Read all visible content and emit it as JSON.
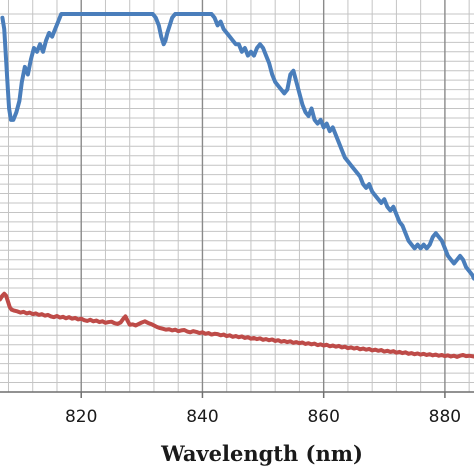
{
  "chart_data": {
    "type": "line",
    "xlabel": "Wavelength (nm)",
    "ylabel": "",
    "xlim": [
      806.6,
      884.8
    ],
    "ylim": [
      0,
      100
    ],
    "x_ticks": [
      820,
      840,
      860,
      880
    ],
    "x_tick_labels": [
      "820",
      "840",
      "860",
      "880"
    ],
    "x_grid_step": 4,
    "y_grid_step": 2.5,
    "grid": true,
    "legend": "none",
    "series": [
      {
        "color": "#4a7ebb",
        "points": [
          [
            807.0,
            99
          ],
          [
            807.3,
            96
          ],
          [
            807.6,
            88
          ],
          [
            807.9,
            80
          ],
          [
            808.1,
            75
          ],
          [
            808.4,
            72
          ],
          [
            808.8,
            72
          ],
          [
            809.3,
            74
          ],
          [
            809.8,
            77
          ],
          [
            810.2,
            82
          ],
          [
            810.7,
            86
          ],
          [
            811.2,
            84
          ],
          [
            811.7,
            88
          ],
          [
            812.2,
            91
          ],
          [
            812.7,
            90
          ],
          [
            813.2,
            92
          ],
          [
            813.7,
            90
          ],
          [
            814.2,
            93
          ],
          [
            814.7,
            95
          ],
          [
            815.2,
            94
          ],
          [
            815.7,
            96
          ],
          [
            816.2,
            98
          ],
          [
            816.7,
            100
          ],
          [
            817.2,
            100
          ],
          [
            817.7,
            100
          ],
          [
            818.2,
            100
          ],
          [
            818.7,
            100
          ],
          [
            819.2,
            100
          ],
          [
            819.7,
            100
          ],
          [
            820.2,
            100
          ],
          [
            821.0,
            100
          ],
          [
            822.0,
            100
          ],
          [
            823.0,
            100
          ],
          [
            824.0,
            100
          ],
          [
            825.0,
            100
          ],
          [
            826.0,
            100
          ],
          [
            827.0,
            100
          ],
          [
            828.0,
            100
          ],
          [
            829.0,
            100
          ],
          [
            830.0,
            100
          ],
          [
            831.0,
            100
          ],
          [
            831.8,
            100
          ],
          [
            832.3,
            99
          ],
          [
            832.8,
            97
          ],
          [
            833.2,
            94
          ],
          [
            833.6,
            92
          ],
          [
            833.9,
            93
          ],
          [
            834.2,
            95
          ],
          [
            834.6,
            97
          ],
          [
            835.0,
            99
          ],
          [
            835.5,
            100
          ],
          [
            836.5,
            100
          ],
          [
            837.5,
            100
          ],
          [
            838.5,
            100
          ],
          [
            839.5,
            100
          ],
          [
            840.5,
            100
          ],
          [
            841.5,
            100
          ],
          [
            842.0,
            99
          ],
          [
            842.5,
            97
          ],
          [
            843.0,
            98
          ],
          [
            843.5,
            96
          ],
          [
            844.0,
            95
          ],
          [
            844.5,
            94
          ],
          [
            845.0,
            93
          ],
          [
            845.5,
            92
          ],
          [
            846.0,
            92
          ],
          [
            846.5,
            90
          ],
          [
            847.0,
            91
          ],
          [
            847.5,
            89
          ],
          [
            848.0,
            90
          ],
          [
            848.5,
            89
          ],
          [
            849.0,
            91
          ],
          [
            849.5,
            92
          ],
          [
            850.0,
            91
          ],
          [
            850.5,
            89
          ],
          [
            851.0,
            87
          ],
          [
            851.5,
            84
          ],
          [
            852.0,
            82
          ],
          [
            852.5,
            81
          ],
          [
            853.0,
            80
          ],
          [
            853.5,
            79
          ],
          [
            854.0,
            80
          ],
          [
            854.5,
            84
          ],
          [
            855.0,
            85
          ],
          [
            855.5,
            82
          ],
          [
            856.0,
            79
          ],
          [
            856.5,
            76
          ],
          [
            857.0,
            74
          ],
          [
            857.5,
            73
          ],
          [
            858.0,
            75
          ],
          [
            858.5,
            72
          ],
          [
            859.0,
            71
          ],
          [
            859.5,
            72
          ],
          [
            860.0,
            70
          ],
          [
            860.5,
            71
          ],
          [
            861.0,
            69
          ],
          [
            861.5,
            70
          ],
          [
            862.0,
            68
          ],
          [
            862.5,
            66
          ],
          [
            863.0,
            64
          ],
          [
            863.5,
            62
          ],
          [
            864.0,
            61
          ],
          [
            864.5,
            60
          ],
          [
            865.0,
            59
          ],
          [
            865.5,
            58
          ],
          [
            866.0,
            57
          ],
          [
            866.5,
            55
          ],
          [
            867.0,
            54
          ],
          [
            867.5,
            55
          ],
          [
            868.0,
            53
          ],
          [
            868.5,
            52
          ],
          [
            869.0,
            51
          ],
          [
            869.5,
            50
          ],
          [
            870.0,
            51
          ],
          [
            870.5,
            49
          ],
          [
            871.0,
            48
          ],
          [
            871.5,
            49
          ],
          [
            872.0,
            47
          ],
          [
            872.5,
            45
          ],
          [
            873.0,
            44
          ],
          [
            873.5,
            42
          ],
          [
            874.0,
            40
          ],
          [
            874.5,
            39
          ],
          [
            875.0,
            38
          ],
          [
            875.5,
            39
          ],
          [
            876.0,
            38
          ],
          [
            876.5,
            39
          ],
          [
            877.0,
            38
          ],
          [
            877.5,
            39
          ],
          [
            878.0,
            41
          ],
          [
            878.5,
            42
          ],
          [
            879.0,
            41
          ],
          [
            879.5,
            40
          ],
          [
            880.0,
            38
          ],
          [
            880.5,
            36
          ],
          [
            881.0,
            35
          ],
          [
            881.5,
            34
          ],
          [
            882.0,
            35
          ],
          [
            882.5,
            36
          ],
          [
            883.0,
            35
          ],
          [
            883.5,
            33
          ],
          [
            884.0,
            32
          ],
          [
            884.5,
            31
          ],
          [
            884.8,
            30
          ]
        ]
      },
      {
        "color": "#be4b48",
        "points": [
          [
            806.6,
            24.5
          ],
          [
            807.0,
            25.5
          ],
          [
            807.3,
            26.0
          ],
          [
            807.6,
            25.5
          ],
          [
            807.9,
            24.0
          ],
          [
            808.2,
            22.5
          ],
          [
            808.5,
            21.8
          ],
          [
            809.0,
            21.5
          ],
          [
            809.5,
            21.3
          ],
          [
            810.0,
            21.0
          ],
          [
            810.5,
            21.2
          ],
          [
            811.0,
            20.8
          ],
          [
            811.5,
            21.0
          ],
          [
            812.0,
            20.6
          ],
          [
            812.5,
            20.8
          ],
          [
            813.0,
            20.4
          ],
          [
            813.5,
            20.6
          ],
          [
            814.0,
            20.2
          ],
          [
            814.5,
            20.4
          ],
          [
            815.0,
            20.0
          ],
          [
            815.5,
            19.8
          ],
          [
            816.0,
            20.1
          ],
          [
            816.5,
            19.7
          ],
          [
            817.0,
            19.9
          ],
          [
            817.5,
            19.5
          ],
          [
            818.0,
            19.8
          ],
          [
            818.5,
            19.4
          ],
          [
            819.0,
            19.6
          ],
          [
            819.5,
            19.2
          ],
          [
            820.0,
            19.4
          ],
          [
            820.5,
            19.0
          ],
          [
            821.0,
            18.8
          ],
          [
            821.5,
            19.1
          ],
          [
            822.0,
            18.7
          ],
          [
            822.5,
            18.9
          ],
          [
            823.0,
            18.5
          ],
          [
            823.5,
            18.7
          ],
          [
            824.0,
            18.3
          ],
          [
            824.5,
            18.5
          ],
          [
            825.0,
            18.6
          ],
          [
            825.5,
            18.2
          ],
          [
            826.0,
            18.0
          ],
          [
            826.5,
            18.4
          ],
          [
            827.0,
            19.5
          ],
          [
            827.3,
            20.0
          ],
          [
            827.6,
            19.0
          ],
          [
            828.0,
            17.8
          ],
          [
            828.5,
            17.9
          ],
          [
            829.0,
            17.6
          ],
          [
            829.5,
            18.0
          ],
          [
            830.0,
            18.4
          ],
          [
            830.5,
            18.7
          ],
          [
            831.0,
            18.3
          ],
          [
            831.5,
            18.0
          ],
          [
            832.0,
            17.6
          ],
          [
            832.5,
            17.2
          ],
          [
            833.0,
            16.9
          ],
          [
            833.5,
            16.7
          ],
          [
            834.0,
            16.5
          ],
          [
            834.5,
            16.6
          ],
          [
            835.0,
            16.3
          ],
          [
            835.5,
            16.5
          ],
          [
            836.0,
            16.1
          ],
          [
            836.5,
            16.3
          ],
          [
            837.0,
            16.4
          ],
          [
            837.5,
            16.0
          ],
          [
            838.0,
            15.8
          ],
          [
            838.5,
            16.1
          ],
          [
            839.0,
            15.9
          ],
          [
            839.5,
            15.6
          ],
          [
            840.0,
            15.8
          ],
          [
            840.5,
            15.4
          ],
          [
            841.0,
            15.6
          ],
          [
            841.5,
            15.2
          ],
          [
            842.0,
            15.4
          ],
          [
            842.5,
            15.3
          ],
          [
            843.0,
            15.0
          ],
          [
            843.5,
            15.2
          ],
          [
            844.0,
            14.8
          ],
          [
            844.5,
            15.0
          ],
          [
            845.0,
            14.6
          ],
          [
            845.5,
            14.8
          ],
          [
            846.0,
            14.5
          ],
          [
            846.5,
            14.7
          ],
          [
            847.0,
            14.3
          ],
          [
            847.5,
            14.5
          ],
          [
            848.0,
            14.1
          ],
          [
            848.5,
            14.3
          ],
          [
            849.0,
            14.0
          ],
          [
            849.5,
            14.2
          ],
          [
            850.0,
            13.8
          ],
          [
            850.5,
            14.0
          ],
          [
            851.0,
            13.7
          ],
          [
            851.5,
            13.9
          ],
          [
            852.0,
            13.5
          ],
          [
            852.5,
            13.7
          ],
          [
            853.0,
            13.3
          ],
          [
            853.5,
            13.5
          ],
          [
            854.0,
            13.2
          ],
          [
            854.5,
            13.4
          ],
          [
            855.0,
            13.0
          ],
          [
            855.5,
            13.2
          ],
          [
            856.0,
            12.9
          ],
          [
            856.5,
            13.1
          ],
          [
            857.0,
            12.7
          ],
          [
            857.5,
            12.9
          ],
          [
            858.0,
            12.6
          ],
          [
            858.5,
            12.8
          ],
          [
            859.0,
            12.4
          ],
          [
            859.5,
            12.6
          ],
          [
            860.0,
            12.3
          ],
          [
            860.5,
            12.5
          ],
          [
            861.0,
            12.1
          ],
          [
            861.5,
            12.3
          ],
          [
            862.0,
            12.0
          ],
          [
            862.5,
            12.2
          ],
          [
            863.0,
            11.8
          ],
          [
            863.5,
            12.0
          ],
          [
            864.0,
            11.6
          ],
          [
            864.5,
            11.8
          ],
          [
            865.0,
            11.5
          ],
          [
            865.5,
            11.7
          ],
          [
            866.0,
            11.3
          ],
          [
            866.5,
            11.5
          ],
          [
            867.0,
            11.2
          ],
          [
            867.5,
            11.4
          ],
          [
            868.0,
            11.0
          ],
          [
            868.5,
            11.2
          ],
          [
            869.0,
            10.9
          ],
          [
            869.5,
            11.1
          ],
          [
            870.0,
            10.7
          ],
          [
            870.5,
            10.9
          ],
          [
            871.0,
            10.6
          ],
          [
            871.5,
            10.8
          ],
          [
            872.0,
            10.4
          ],
          [
            872.5,
            10.6
          ],
          [
            873.0,
            10.3
          ],
          [
            873.5,
            10.5
          ],
          [
            874.0,
            10.1
          ],
          [
            874.5,
            10.3
          ],
          [
            875.0,
            10.0
          ],
          [
            875.5,
            10.2
          ],
          [
            876.0,
            9.9
          ],
          [
            876.5,
            10.1
          ],
          [
            877.0,
            9.8
          ],
          [
            877.5,
            10.0
          ],
          [
            878.0,
            9.7
          ],
          [
            878.5,
            9.9
          ],
          [
            879.0,
            9.6
          ],
          [
            879.5,
            9.8
          ],
          [
            880.0,
            9.5
          ],
          [
            880.5,
            9.7
          ],
          [
            881.0,
            9.4
          ],
          [
            881.5,
            9.6
          ],
          [
            882.0,
            9.3
          ],
          [
            882.5,
            9.6
          ],
          [
            883.0,
            9.8
          ],
          [
            883.5,
            9.5
          ],
          [
            884.0,
            9.6
          ],
          [
            884.8,
            9.4
          ]
        ]
      }
    ]
  }
}
